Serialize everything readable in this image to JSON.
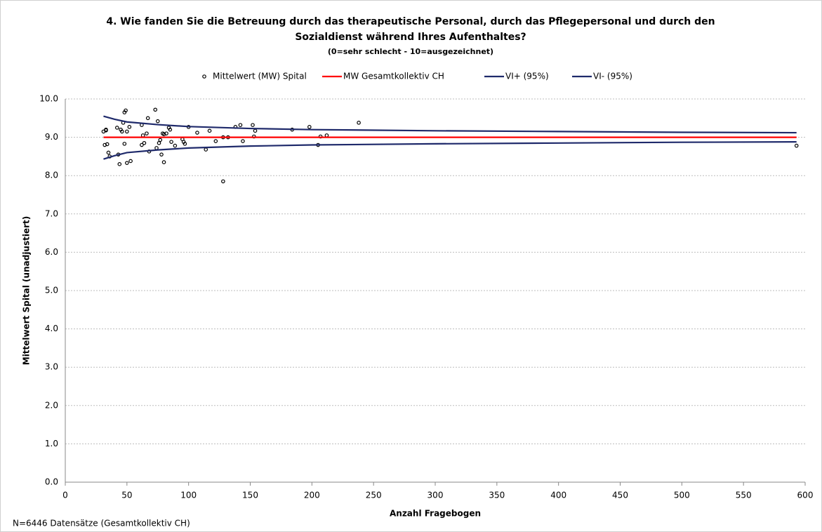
{
  "chart_data": {
    "type": "scatter",
    "title_lines": [
      "4. Wie fanden Sie die Betreuung durch das therapeutische Personal, durch das Pflegepersonal und durch den",
      "Sozialdienst während Ihres Aufenthaltes?"
    ],
    "subtitle": "(0=sehr schlecht - 10=ausgezeichnet)",
    "x_label": "Anzahl Fragebogen",
    "y_label": "Mittelwert Spital (unadjustiert)",
    "footnote": "N=6446 Datensätze (Gesamtkollektiv CH)",
    "xlim": [
      0,
      600
    ],
    "xticks": [
      0,
      50,
      100,
      150,
      200,
      250,
      300,
      350,
      400,
      450,
      500,
      550,
      600
    ],
    "ylim": [
      0,
      10
    ],
    "yticks": [
      {
        "value": 0,
        "label": "0.0"
      },
      {
        "value": 1,
        "label": "1.0"
      },
      {
        "value": 2,
        "label": "2.0"
      },
      {
        "value": 3,
        "label": "3.0"
      },
      {
        "value": 4,
        "label": "4.0"
      },
      {
        "value": 5,
        "label": "5.0"
      },
      {
        "value": 6,
        "label": "6.0"
      },
      {
        "value": 7,
        "label": "7.0"
      },
      {
        "value": 8,
        "label": "8.0"
      },
      {
        "value": 9,
        "label": "9.0"
      },
      {
        "value": 10,
        "label": "10.0"
      }
    ],
    "grid": true,
    "legend": "top",
    "series": [
      {
        "name": "Mittelwert (MW) Spital",
        "type": "scatter",
        "color": "#000000",
        "x": [
          31,
          32,
          33,
          34,
          35,
          36,
          33,
          42,
          44,
          43,
          46,
          47,
          48,
          49,
          50,
          48,
          50,
          52,
          53,
          45,
          62,
          62,
          63,
          64,
          66,
          67,
          68,
          73,
          74,
          75,
          76,
          77,
          78,
          79,
          80,
          80,
          82,
          84,
          85,
          86,
          89,
          95,
          96,
          97,
          100,
          107,
          114,
          117,
          122,
          128,
          128,
          132,
          138,
          142,
          144,
          152,
          153,
          154,
          184,
          198,
          205,
          207,
          212,
          238,
          593
        ],
        "values": [
          9.15,
          8.8,
          9.2,
          8.82,
          8.6,
          8.5,
          9.18,
          9.25,
          8.3,
          8.55,
          9.15,
          9.38,
          9.65,
          9.7,
          9.15,
          8.83,
          8.33,
          9.27,
          8.38,
          9.2,
          9.32,
          8.8,
          9.05,
          8.85,
          9.1,
          9.5,
          8.63,
          9.72,
          8.72,
          9.42,
          8.85,
          8.93,
          8.55,
          9.1,
          9.08,
          8.35,
          9.1,
          9.25,
          9.2,
          8.88,
          8.78,
          8.95,
          8.88,
          8.83,
          9.27,
          9.12,
          8.68,
          9.17,
          8.9,
          7.85,
          9.0,
          9.0,
          9.27,
          9.32,
          8.9,
          9.32,
          9.02,
          9.17,
          9.2,
          9.27,
          8.8,
          9.02,
          9.05,
          9.38,
          8.78
        ]
      },
      {
        "name": "MW Gesamtkollektiv CH",
        "type": "line",
        "color": "#ff0000",
        "x": [
          31,
          593
        ],
        "values": [
          9.0,
          9.0
        ]
      },
      {
        "name": "VI+ (95%)",
        "type": "line",
        "color": "#1f2a6b",
        "x": [
          31,
          40,
          50,
          75,
          100,
          150,
          200,
          300,
          400,
          500,
          593
        ],
        "values": [
          9.55,
          9.47,
          9.4,
          9.33,
          9.28,
          9.23,
          9.2,
          9.17,
          9.15,
          9.13,
          9.12
        ]
      },
      {
        "name": "VI- (95%)",
        "type": "line",
        "color": "#1f2a6b",
        "x": [
          31,
          40,
          50,
          75,
          100,
          150,
          200,
          300,
          400,
          500,
          593
        ],
        "values": [
          8.43,
          8.52,
          8.6,
          8.67,
          8.72,
          8.77,
          8.8,
          8.83,
          8.85,
          8.87,
          8.88
        ]
      }
    ]
  }
}
